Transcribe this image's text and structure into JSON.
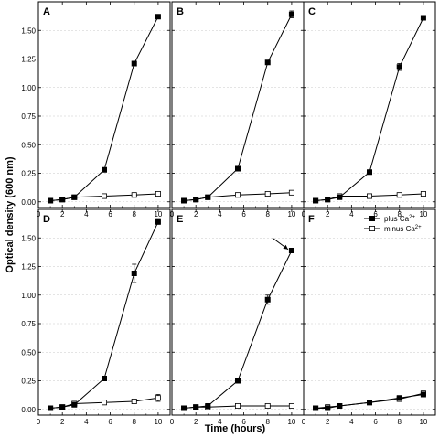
{
  "chart_data": {
    "type": "line",
    "xlabel": "Time (hours)",
    "ylabel": "Optical density (600 nm)",
    "xlim": [
      0,
      11
    ],
    "ylim": [
      -0.05,
      1.75
    ],
    "xticks": [
      "0",
      "2",
      "4",
      "6",
      "8",
      "10"
    ],
    "yticks": [
      "0.00",
      "0.25",
      "0.50",
      "0.75",
      "1.00",
      "1.25",
      "1.50"
    ],
    "grid": "horizontal dashed",
    "legend": {
      "placement": "top-right of panel F",
      "entries": [
        {
          "text": "plus Ca",
          "sup": "2+",
          "marker": "filled-square"
        },
        {
          "text": "minus Ca",
          "sup": "2+",
          "marker": "open-square"
        }
      ]
    },
    "panels": [
      {
        "label": "A",
        "series": [
          {
            "marker": "filled-square",
            "x": [
              1,
              2,
              3,
              5.5,
              8,
              10
            ],
            "y": [
              0.01,
              0.02,
              0.04,
              0.28,
              1.21,
              1.62
            ],
            "err": [
              0,
              0,
              0,
              0.01,
              0.01,
              0.01
            ]
          },
          {
            "marker": "open-square",
            "x": [
              1,
              2,
              3,
              5.5,
              8,
              10
            ],
            "y": [
              0.01,
              0.02,
              0.04,
              0.05,
              0.06,
              0.07
            ],
            "err": [
              0,
              0,
              0,
              0,
              0,
              0
            ]
          }
        ]
      },
      {
        "label": "B",
        "series": [
          {
            "marker": "filled-square",
            "x": [
              1,
              2,
              3,
              5.5,
              8,
              10
            ],
            "y": [
              0.01,
              0.02,
              0.04,
              0.29,
              1.22,
              1.64
            ],
            "err": [
              0,
              0,
              0,
              0.01,
              0.01,
              0.03
            ]
          },
          {
            "marker": "open-square",
            "x": [
              1,
              2,
              3,
              5.5,
              8,
              10
            ],
            "y": [
              0.01,
              0.02,
              0.04,
              0.06,
              0.07,
              0.08
            ],
            "err": [
              0,
              0,
              0,
              0,
              0,
              0
            ]
          }
        ]
      },
      {
        "label": "C",
        "series": [
          {
            "marker": "filled-square",
            "x": [
              1,
              2,
              3,
              5.5,
              8,
              10
            ],
            "y": [
              0.01,
              0.02,
              0.04,
              0.26,
              1.18,
              1.61
            ],
            "err": [
              0,
              0,
              0,
              0.01,
              0.03,
              0.01
            ]
          },
          {
            "marker": "open-square",
            "x": [
              1,
              2,
              3,
              5.5,
              8,
              10
            ],
            "y": [
              0.01,
              0.02,
              0.05,
              0.05,
              0.06,
              0.07
            ],
            "err": [
              0,
              0,
              0,
              0,
              0,
              0
            ]
          }
        ]
      },
      {
        "label": "D",
        "series": [
          {
            "marker": "filled-square",
            "x": [
              1,
              2,
              3,
              5.5,
              8,
              10
            ],
            "y": [
              0.01,
              0.02,
              0.04,
              0.27,
              1.19,
              1.64
            ],
            "err": [
              0,
              0,
              0,
              0.01,
              0.08,
              0.02
            ]
          },
          {
            "marker": "open-square",
            "x": [
              1,
              2,
              3,
              5.5,
              8,
              10
            ],
            "y": [
              0.01,
              0.02,
              0.05,
              0.06,
              0.07,
              0.1
            ],
            "err": [
              0,
              0,
              0,
              0,
              0,
              0.03
            ]
          }
        ]
      },
      {
        "label": "E",
        "series": [
          {
            "marker": "filled-square",
            "x": [
              1,
              2,
              3,
              5.5,
              8,
              10
            ],
            "y": [
              0.01,
              0.02,
              0.03,
              0.25,
              0.96,
              1.39
            ],
            "err": [
              0,
              0,
              0,
              0.01,
              0.04,
              0.01
            ]
          },
          {
            "marker": "open-square",
            "x": [
              1,
              2,
              3,
              5.5,
              8,
              10
            ],
            "y": [
              0.01,
              0.02,
              0.02,
              0.03,
              0.03,
              0.03
            ],
            "err": [
              0,
              0,
              0,
              0,
              0,
              0
            ]
          }
        ],
        "arrow": {
          "from": [
            8.4,
            1.5
          ],
          "to": [
            9.7,
            1.4
          ]
        }
      },
      {
        "label": "F",
        "series": [
          {
            "marker": "filled-square",
            "x": [
              1,
              2,
              3,
              5.5,
              8,
              10
            ],
            "y": [
              0.01,
              0.01,
              0.03,
              0.06,
              0.1,
              0.13
            ],
            "err": [
              0,
              0,
              0,
              0,
              0,
              0
            ]
          },
          {
            "marker": "open-square",
            "x": [
              1,
              2,
              3,
              5.5,
              8,
              10
            ],
            "y": [
              0.01,
              0.02,
              0.03,
              0.06,
              0.09,
              0.14
            ],
            "err": [
              0,
              0,
              0,
              0,
              0.01,
              0.01
            ]
          }
        ],
        "show_legend": true
      }
    ]
  }
}
